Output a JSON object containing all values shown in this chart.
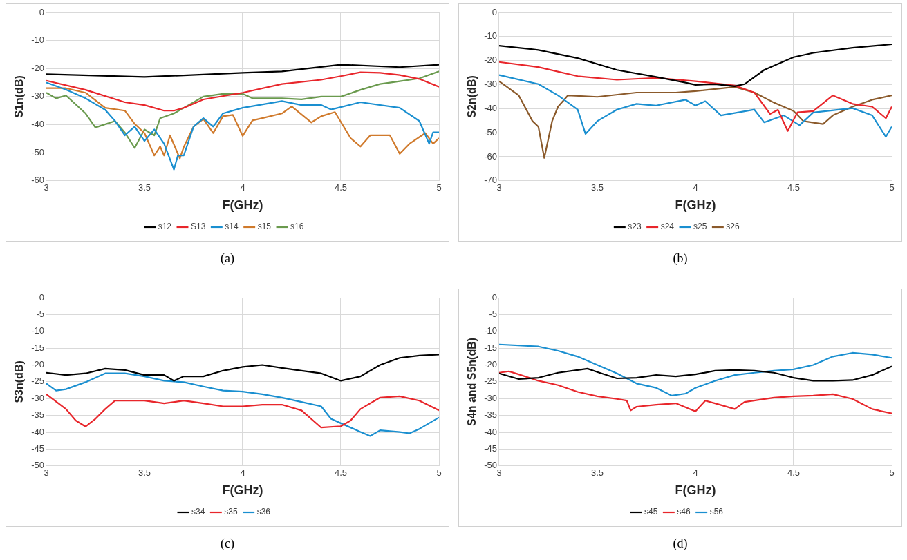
{
  "chart_data": [
    {
      "type": "line",
      "xlabel": "F(GHz)",
      "ylabel": "S1n(dB)",
      "xlim": [
        3,
        5
      ],
      "xticks": [
        3,
        3.5,
        4,
        4.5,
        5
      ],
      "ylim": [
        -60,
        0
      ],
      "yticks": [
        -60,
        -50,
        -40,
        -30,
        -20,
        -10,
        0
      ],
      "grid": true,
      "legend": "bottom",
      "marker": "none",
      "line_style": "solid",
      "annotations": [
        "(a)"
      ],
      "series": [
        {
          "name": "s12",
          "color": "#000000",
          "x": [
            3,
            3.5,
            4,
            4.2,
            4.5,
            4.8,
            5
          ],
          "values": [
            -22,
            -23,
            -21.5,
            -21,
            -18.6,
            -19.5,
            -18.6
          ]
        },
        {
          "name": "S13",
          "color": "#e8262b",
          "x": [
            3,
            3.2,
            3.4,
            3.5,
            3.6,
            3.65,
            3.7,
            3.8,
            4,
            4.2,
            4.4,
            4.5,
            4.6,
            4.7,
            4.8,
            4.9,
            5
          ],
          "values": [
            -24.3,
            -27.6,
            -32,
            -33,
            -35,
            -35,
            -34,
            -31,
            -28.6,
            -25.5,
            -24,
            -22.7,
            -21.3,
            -21.5,
            -22.3,
            -23.7,
            -26.5
          ]
        },
        {
          "name": "s14",
          "color": "#1a8fd0",
          "x": [
            3,
            3.1,
            3.2,
            3.3,
            3.35,
            3.4,
            3.45,
            3.5,
            3.55,
            3.6,
            3.65,
            3.67,
            3.7,
            3.75,
            3.8,
            3.85,
            3.9,
            4,
            4.2,
            4.3,
            4.4,
            4.45,
            4.6,
            4.8,
            4.9,
            4.95,
            4.97,
            5
          ],
          "values": [
            -25,
            -27.5,
            -30.6,
            -34.7,
            -38.7,
            -43.8,
            -40.7,
            -45.8,
            -41.7,
            -46.8,
            -56,
            -51,
            -51,
            -40.7,
            -37.7,
            -40.7,
            -36,
            -34,
            -31.6,
            -33,
            -33,
            -34.6,
            -32,
            -34,
            -38.7,
            -46.8,
            -42.7,
            -42.7
          ]
        },
        {
          "name": "s15",
          "color": "#d07a2c",
          "x": [
            3,
            3.1,
            3.2,
            3.3,
            3.4,
            3.45,
            3.5,
            3.55,
            3.58,
            3.6,
            3.63,
            3.68,
            3.7,
            3.75,
            3.8,
            3.85,
            3.9,
            3.95,
            4,
            4.05,
            4.1,
            4.2,
            4.25,
            4.35,
            4.4,
            4.47,
            4.55,
            4.6,
            4.65,
            4.75,
            4.8,
            4.85,
            4.93,
            4.97,
            5
          ],
          "values": [
            -27,
            -27,
            -28.6,
            -34,
            -35,
            -39.7,
            -43,
            -51,
            -47.8,
            -51,
            -43.8,
            -52,
            -48,
            -40.7,
            -38,
            -43,
            -37,
            -36.5,
            -44,
            -38.5,
            -37.7,
            -36,
            -33.5,
            -39.2,
            -37,
            -35.5,
            -44.8,
            -47.8,
            -43.8,
            -43.8,
            -50.4,
            -46.8,
            -43,
            -46.8,
            -44.8
          ]
        },
        {
          "name": "s16",
          "color": "#6a9a4e",
          "x": [
            3,
            3.05,
            3.1,
            3.2,
            3.25,
            3.35,
            3.4,
            3.45,
            3.5,
            3.55,
            3.58,
            3.65,
            3.7,
            3.8,
            3.9,
            4,
            4.05,
            4.2,
            4.3,
            4.4,
            4.5,
            4.6,
            4.7,
            4.8,
            4.9,
            5
          ],
          "values": [
            -28.6,
            -30.6,
            -29.6,
            -36,
            -41,
            -38.7,
            -42.8,
            -48.3,
            -41.7,
            -43.8,
            -37.7,
            -36,
            -34,
            -30,
            -29,
            -29,
            -30.6,
            -30.6,
            -31,
            -30,
            -30,
            -27.6,
            -25.5,
            -24.5,
            -23.5,
            -21
          ]
        }
      ]
    },
    {
      "type": "line",
      "xlabel": "F(GHz)",
      "ylabel": "S2n(dB)",
      "xlim": [
        3,
        5
      ],
      "xticks": [
        3,
        3.5,
        4,
        4.5,
        5
      ],
      "ylim": [
        -70,
        0
      ],
      "yticks": [
        -70,
        -60,
        -50,
        -40,
        -30,
        -20,
        -10,
        0
      ],
      "grid": true,
      "legend": "bottom",
      "marker": "none",
      "line_style": "solid",
      "annotations": [
        "(b)"
      ],
      "series": [
        {
          "name": "s23",
          "color": "#000000",
          "x": [
            3,
            3.2,
            3.4,
            3.6,
            3.8,
            3.95,
            4,
            4.1,
            4.2,
            4.25,
            4.35,
            4.5,
            4.6,
            4.8,
            5
          ],
          "values": [
            -13.8,
            -15.6,
            -19,
            -23.9,
            -26.8,
            -29.2,
            -30.1,
            -29.8,
            -30.7,
            -29.8,
            -23.9,
            -18.6,
            -16.8,
            -14.7,
            -13.2
          ]
        },
        {
          "name": "s24",
          "color": "#e8262b",
          "x": [
            3,
            3.2,
            3.4,
            3.6,
            3.8,
            4,
            4.2,
            4.3,
            4.38,
            4.42,
            4.47,
            4.52,
            4.6,
            4.7,
            4.8,
            4.9,
            4.97,
            5
          ],
          "values": [
            -20.6,
            -22.7,
            -26.5,
            -28,
            -27.2,
            -28.6,
            -30.4,
            -33.3,
            -42.2,
            -40.5,
            -49.3,
            -41.5,
            -41,
            -34.5,
            -38,
            -39.2,
            -44,
            -39.2
          ]
        },
        {
          "name": "s25",
          "color": "#1a8fd0",
          "x": [
            3,
            3.2,
            3.3,
            3.4,
            3.44,
            3.5,
            3.6,
            3.7,
            3.8,
            3.95,
            4,
            4.05,
            4.13,
            4.3,
            4.35,
            4.45,
            4.53,
            4.6,
            4.8,
            4.9,
            4.97,
            5
          ],
          "values": [
            -26,
            -29.8,
            -34.5,
            -40.4,
            -50.5,
            -45.2,
            -40.4,
            -38,
            -38.7,
            -36.3,
            -38.7,
            -36.9,
            -42.8,
            -40.4,
            -45.7,
            -42.8,
            -46.9,
            -41.6,
            -39.8,
            -42.8,
            -51.7,
            -47.5
          ]
        },
        {
          "name": "s26",
          "color": "#8b5a2b",
          "x": [
            3,
            3.1,
            3.17,
            3.2,
            3.23,
            3.27,
            3.3,
            3.35,
            3.5,
            3.7,
            3.9,
            4,
            4.2,
            4.3,
            4.4,
            4.5,
            4.55,
            4.65,
            4.7,
            4.8,
            4.9,
            5
          ],
          "values": [
            -28.6,
            -34.5,
            -45.2,
            -47.5,
            -60.5,
            -45.2,
            -39.2,
            -34.5,
            -35.1,
            -33.3,
            -33.3,
            -32.7,
            -31,
            -33.3,
            -37.5,
            -41,
            -45.2,
            -46.4,
            -42.8,
            -39.2,
            -36.3,
            -34.5
          ]
        }
      ]
    },
    {
      "type": "line",
      "xlabel": "F(GHz)",
      "ylabel": "S3n(dB)",
      "xlim": [
        3,
        5
      ],
      "xticks": [
        3,
        3.5,
        4,
        4.5,
        5
      ],
      "ylim": [
        -50,
        0
      ],
      "yticks": [
        -50,
        -45,
        -40,
        -35,
        -30,
        -25,
        -20,
        -15,
        -10,
        -5,
        0
      ],
      "grid": true,
      "legend": "bottom",
      "marker": "none",
      "line_style": "solid",
      "annotations": [
        "(c)"
      ],
      "series": [
        {
          "name": "s34",
          "color": "#000000",
          "x": [
            3,
            3.1,
            3.2,
            3.3,
            3.4,
            3.5,
            3.6,
            3.65,
            3.7,
            3.8,
            3.9,
            4,
            4.1,
            4.2,
            4.3,
            4.4,
            4.5,
            4.6,
            4.7,
            4.8,
            4.9,
            5
          ],
          "values": [
            -22.3,
            -23,
            -22.5,
            -21.1,
            -21.5,
            -23,
            -23,
            -24.7,
            -23.4,
            -23.4,
            -21.7,
            -20.6,
            -20,
            -20.9,
            -21.7,
            -22.5,
            -24.7,
            -23.4,
            -20,
            -17.9,
            -17.2,
            -16.9
          ]
        },
        {
          "name": "s35",
          "color": "#e8262b",
          "x": [
            3,
            3.1,
            3.15,
            3.2,
            3.25,
            3.3,
            3.35,
            3.5,
            3.6,
            3.7,
            3.8,
            3.9,
            4,
            4.1,
            4.2,
            4.3,
            4.4,
            4.5,
            4.55,
            4.6,
            4.7,
            4.8,
            4.9,
            5
          ],
          "values": [
            -28.7,
            -33.1,
            -36.5,
            -38.3,
            -36,
            -33.1,
            -30.6,
            -30.6,
            -31.4,
            -30.6,
            -31.4,
            -32.3,
            -32.3,
            -31.8,
            -31.8,
            -33.5,
            -38.6,
            -38.2,
            -36.5,
            -33.1,
            -29.7,
            -29.3,
            -30.6,
            -33.5
          ]
        },
        {
          "name": "s36",
          "color": "#1a8fd0",
          "x": [
            3,
            3.05,
            3.1,
            3.2,
            3.3,
            3.4,
            3.5,
            3.6,
            3.7,
            3.8,
            3.9,
            4,
            4.1,
            4.2,
            4.3,
            4.4,
            4.45,
            4.5,
            4.6,
            4.65,
            4.7,
            4.8,
            4.85,
            4.9,
            5
          ],
          "values": [
            -25.5,
            -27.6,
            -27.2,
            -25.1,
            -22.5,
            -22.5,
            -23.4,
            -24.7,
            -25.1,
            -26.4,
            -27.6,
            -27.9,
            -28.7,
            -29.7,
            -31,
            -32.3,
            -36,
            -37.3,
            -39.9,
            -41.1,
            -39.4,
            -39.9,
            -40.3,
            -39,
            -35.6
          ]
        }
      ]
    },
    {
      "type": "line",
      "xlabel": "F(GHz)",
      "ylabel": "S4n and S5n(dB)",
      "xlim": [
        3,
        5
      ],
      "xticks": [
        3,
        3.5,
        4,
        4.5,
        5
      ],
      "ylim": [
        -50,
        0
      ],
      "yticks": [
        -50,
        -45,
        -40,
        -35,
        -30,
        -25,
        -20,
        -15,
        -10,
        -5,
        0
      ],
      "grid": true,
      "legend": "bottom",
      "marker": "none",
      "line_style": "solid",
      "annotations": [
        "(d)"
      ],
      "series": [
        {
          "name": "s45",
          "color": "#000000",
          "x": [
            3,
            3.1,
            3.2,
            3.3,
            3.4,
            3.45,
            3.5,
            3.6,
            3.7,
            3.8,
            3.9,
            4,
            4.1,
            4.2,
            4.3,
            4.4,
            4.5,
            4.6,
            4.7,
            4.8,
            4.9,
            5
          ],
          "values": [
            -22.5,
            -24.2,
            -23.8,
            -22.3,
            -21.5,
            -21.1,
            -22.1,
            -24,
            -23.8,
            -23,
            -23.4,
            -22.8,
            -21.7,
            -21.5,
            -21.7,
            -22.3,
            -23.8,
            -24.7,
            -24.7,
            -24.5,
            -23,
            -20.4
          ]
        },
        {
          "name": "s46",
          "color": "#e8262b",
          "x": [
            3,
            3.05,
            3.1,
            3.2,
            3.3,
            3.4,
            3.5,
            3.6,
            3.65,
            3.67,
            3.7,
            3.8,
            3.9,
            4,
            4.05,
            4.1,
            4.2,
            4.25,
            4.4,
            4.5,
            4.6,
            4.7,
            4.8,
            4.9,
            5
          ],
          "values": [
            -22.3,
            -21.9,
            -22.8,
            -24.7,
            -26,
            -28,
            -29.3,
            -30.1,
            -30.6,
            -33.5,
            -32.4,
            -31.8,
            -31.4,
            -33.8,
            -30.6,
            -31.4,
            -33.1,
            -31,
            -29.7,
            -29.3,
            -29.1,
            -28.7,
            -30.1,
            -33.1,
            -34.4
          ]
        },
        {
          "name": "s56",
          "color": "#1a8fd0",
          "x": [
            3,
            3.2,
            3.3,
            3.4,
            3.5,
            3.6,
            3.7,
            3.8,
            3.88,
            3.95,
            4,
            4.1,
            4.2,
            4.3,
            4.4,
            4.5,
            4.6,
            4.7,
            4.8,
            4.9,
            5
          ],
          "values": [
            -13.9,
            -14.5,
            -15.8,
            -17.5,
            -20,
            -22.5,
            -25.5,
            -26.8,
            -29.1,
            -28.5,
            -26.8,
            -24.7,
            -23,
            -22.3,
            -21.7,
            -21.3,
            -20,
            -17.5,
            -16.4,
            -16.9,
            -17.9
          ]
        }
      ]
    }
  ]
}
